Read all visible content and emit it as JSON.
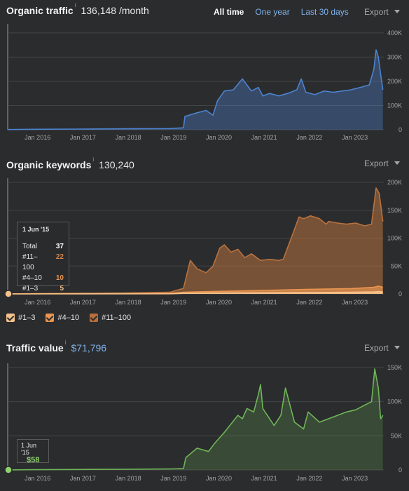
{
  "colors": {
    "traffic": "#4d83d0",
    "kw_top": "#d4864b",
    "kw_4_10": "#e99550",
    "kw_1_3": "#f6c28a",
    "value": "#6fb558",
    "grid": "#444547"
  },
  "organic_traffic": {
    "title": "Organic traffic",
    "info_icon": "i",
    "value": "136,148 /month",
    "periods": [
      "All time",
      "One year",
      "Last 30 days"
    ],
    "active_period": "All time",
    "export_label": "Export"
  },
  "organic_keywords": {
    "title": "Organic keywords",
    "info_icon": "i",
    "value": "130,240",
    "export_label": "Export",
    "tooltip": {
      "date": "1 Jun '15",
      "rows": [
        {
          "label": "Total",
          "value": "37"
        },
        {
          "label": "#11–100",
          "value": "22"
        },
        {
          "label": "#4–10",
          "value": "10"
        },
        {
          "label": "#1–3",
          "value": "5"
        }
      ]
    },
    "legend": [
      "#1–3",
      "#4–10",
      "#11–100"
    ]
  },
  "traffic_value": {
    "title": "Traffic value",
    "info_icon": "i",
    "value": "$71,796",
    "export_label": "Export",
    "tooltip": {
      "date": "1 Jun '15",
      "value": "$58"
    }
  },
  "chart_data": [
    {
      "type": "area",
      "title": "Organic traffic",
      "x_ticks": [
        "Jan 2016",
        "Jan 2017",
        "Jan 2018",
        "Jan 2019",
        "Jan 2020",
        "Jan 2021",
        "Jan 2022",
        "Jan 2023"
      ],
      "y_ticks": [
        "0",
        "100K",
        "200K",
        "300K",
        "400K"
      ],
      "ylim": [
        0,
        420000
      ],
      "grid": true,
      "series": [
        {
          "x": [
            2015.42,
            2016.0,
            2017.0,
            2018.0,
            2019.0,
            2019.3,
            2019.33,
            2019.6,
            2019.8,
            2019.95,
            2020.05,
            2020.2,
            2020.4,
            2020.6,
            2020.8,
            2020.95,
            2021.05,
            2021.2,
            2021.4,
            2021.6,
            2021.8,
            2021.9,
            2022.0,
            2022.2,
            2022.4,
            2022.6,
            2022.8,
            2023.0,
            2023.2,
            2023.4,
            2023.5,
            2023.55,
            2023.6,
            2023.65,
            2023.7
          ],
          "values": [
            1000,
            2000,
            3000,
            4000,
            5000,
            8000,
            55000,
            70000,
            80000,
            60000,
            120000,
            160000,
            165000,
            210000,
            160000,
            175000,
            140000,
            150000,
            140000,
            150000,
            165000,
            210000,
            155000,
            145000,
            160000,
            155000,
            160000,
            165000,
            175000,
            185000,
            250000,
            330000,
            300000,
            230000,
            165000
          ]
        }
      ]
    },
    {
      "type": "area",
      "title": "Organic keywords",
      "x_ticks": [
        "Jan 2016",
        "Jan 2017",
        "Jan 2018",
        "Jan 2019",
        "Jan 2020",
        "Jan 2021",
        "Jan 2022",
        "Jan 2023"
      ],
      "y_ticks": [
        "0",
        "50K",
        "100K",
        "150K",
        "200K"
      ],
      "ylim": [
        0,
        200000
      ],
      "grid": true,
      "series": [
        {
          "name": "#11–100",
          "x": [
            2015.42,
            2016.0,
            2017.0,
            2018.0,
            2019.0,
            2019.3,
            2019.45,
            2019.6,
            2019.8,
            2019.95,
            2020.1,
            2020.2,
            2020.35,
            2020.5,
            2020.65,
            2020.8,
            2021.0,
            2021.2,
            2021.4,
            2021.5,
            2021.7,
            2021.85,
            2021.95,
            2022.1,
            2022.3,
            2022.45,
            2022.5,
            2022.7,
            2022.9,
            2023.1,
            2023.3,
            2023.45,
            2023.55,
            2023.62,
            2023.7
          ],
          "values": [
            37,
            500,
            1000,
            1500,
            3000,
            10000,
            60000,
            45000,
            38000,
            50000,
            82000,
            88000,
            75000,
            80000,
            65000,
            72000,
            60000,
            62000,
            60000,
            62000,
            105000,
            138000,
            135000,
            140000,
            135000,
            125000,
            130000,
            127000,
            125000,
            127000,
            122000,
            125000,
            190000,
            180000,
            130000
          ]
        },
        {
          "name": "#4–10",
          "x": [
            2015.42,
            2019.0,
            2019.3,
            2020.0,
            2021.0,
            2022.0,
            2023.0,
            2023.5,
            2023.6,
            2023.7
          ],
          "values": [
            15,
            1000,
            3000,
            4500,
            6000,
            8000,
            9500,
            12000,
            14000,
            12000
          ]
        },
        {
          "name": "#1–3",
          "x": [
            2015.42,
            2019.0,
            2019.3,
            2020.0,
            2021.0,
            2022.0,
            2023.0,
            2023.5,
            2023.6,
            2023.7
          ],
          "values": [
            5,
            300,
            1000,
            1500,
            2000,
            2500,
            3000,
            3800,
            4200,
            3800
          ]
        }
      ]
    },
    {
      "type": "area",
      "title": "Traffic value",
      "x_ticks": [
        "Jan 2016",
        "Jan 2017",
        "Jan 2018",
        "Jan 2019",
        "Jan 2020",
        "Jan 2021",
        "Jan 2022",
        "Jan 2023"
      ],
      "y_ticks": [
        "0",
        "50K",
        "100K",
        "150K"
      ],
      "ylim": [
        0,
        150000
      ],
      "grid": true,
      "series": [
        {
          "x": [
            2015.42,
            2016.0,
            2017.0,
            2018.0,
            2019.0,
            2019.3,
            2019.35,
            2019.6,
            2019.85,
            2020.0,
            2020.2,
            2020.5,
            2020.6,
            2020.7,
            2020.85,
            2020.95,
            2021.0,
            2021.05,
            2021.15,
            2021.3,
            2021.45,
            2021.55,
            2021.75,
            2021.85,
            2021.95,
            2022.05,
            2022.3,
            2022.5,
            2022.7,
            2022.9,
            2023.1,
            2023.3,
            2023.45,
            2023.52,
            2023.6,
            2023.65,
            2023.7
          ],
          "values": [
            58,
            400,
            700,
            1000,
            1500,
            2000,
            18000,
            32000,
            27000,
            40000,
            55000,
            80000,
            75000,
            90000,
            85000,
            110000,
            125000,
            90000,
            80000,
            65000,
            80000,
            120000,
            70000,
            65000,
            60000,
            85000,
            70000,
            75000,
            80000,
            85000,
            88000,
            95000,
            100000,
            148000,
            120000,
            75000,
            80000
          ]
        }
      ]
    }
  ]
}
